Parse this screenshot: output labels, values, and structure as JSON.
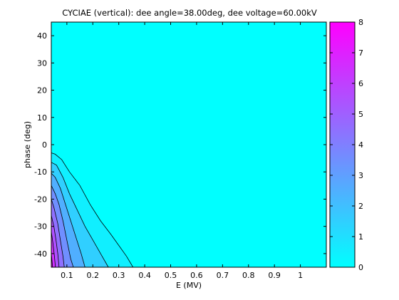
{
  "chart_data": {
    "type": "contour",
    "title": "CYCIAE (vertical): dee angle=38.00deg, dee voltage=60.00kV",
    "xlabel": "E (MV)",
    "ylabel": "phase (deg)",
    "xlim": [
      0.04,
      1.1
    ],
    "ylim": [
      -45,
      45
    ],
    "xticks": [
      "0.1",
      "0.2",
      "0.3",
      "0.4",
      "0.5",
      "0.6",
      "0.7",
      "0.8",
      "0.9",
      "1"
    ],
    "xtick_values": [
      0.1,
      0.2,
      0.3,
      0.4,
      0.5,
      0.6,
      0.7,
      0.8,
      0.9,
      1.0
    ],
    "yticks": [
      "40",
      "30",
      "20",
      "10",
      "0",
      "-10",
      "-20",
      "-30",
      "-40"
    ],
    "ytick_values": [
      40,
      30,
      20,
      10,
      0,
      -10,
      -20,
      -30,
      -40
    ],
    "colorbar": {
      "range": [
        0,
        8
      ],
      "ticks": [
        "0",
        "1",
        "2",
        "3",
        "4",
        "5",
        "6",
        "7",
        "8"
      ],
      "tick_values": [
        0,
        1,
        2,
        3,
        4,
        5,
        6,
        7,
        8
      ],
      "colormap": "cool",
      "color_low": "#00ffff",
      "color_high": "#ff00ff"
    },
    "levels": [
      {
        "level": 1,
        "points": [
          [
            0.04,
            -3.0
          ],
          [
            0.055,
            -3.5
          ],
          [
            0.08,
            -5.5
          ],
          [
            0.11,
            -10
          ],
          [
            0.15,
            -15
          ],
          [
            0.19,
            -22
          ],
          [
            0.23,
            -28
          ],
          [
            0.27,
            -33
          ],
          [
            0.3,
            -37
          ],
          [
            0.33,
            -41
          ],
          [
            0.355,
            -45
          ]
        ]
      },
      {
        "level": 2,
        "points": [
          [
            0.04,
            -6.5
          ],
          [
            0.06,
            -7.5
          ],
          [
            0.085,
            -12
          ],
          [
            0.11,
            -18
          ],
          [
            0.14,
            -24
          ],
          [
            0.17,
            -30
          ],
          [
            0.2,
            -35
          ],
          [
            0.23,
            -40
          ],
          [
            0.26,
            -45
          ]
        ]
      },
      {
        "level": 3,
        "points": [
          [
            0.04,
            -10.5
          ],
          [
            0.055,
            -12
          ],
          [
            0.075,
            -16
          ],
          [
            0.095,
            -22
          ],
          [
            0.115,
            -28
          ],
          [
            0.135,
            -34
          ],
          [
            0.155,
            -40
          ],
          [
            0.17,
            -45
          ]
        ]
      },
      {
        "level": 4,
        "points": [
          [
            0.04,
            -15
          ],
          [
            0.055,
            -18
          ],
          [
            0.07,
            -22
          ],
          [
            0.085,
            -28
          ],
          [
            0.1,
            -35
          ],
          [
            0.115,
            -42
          ],
          [
            0.125,
            -45
          ]
        ]
      },
      {
        "level": 5,
        "points": [
          [
            0.04,
            -20
          ],
          [
            0.05,
            -23
          ],
          [
            0.065,
            -29
          ],
          [
            0.075,
            -35
          ],
          [
            0.085,
            -41
          ],
          [
            0.09,
            -45
          ]
        ]
      },
      {
        "level": 6,
        "points": [
          [
            0.04,
            -26
          ],
          [
            0.05,
            -30
          ],
          [
            0.058,
            -35
          ],
          [
            0.065,
            -40
          ],
          [
            0.07,
            -45
          ]
        ]
      },
      {
        "level": 7,
        "points": [
          [
            0.04,
            -32
          ],
          [
            0.046,
            -36
          ],
          [
            0.052,
            -41
          ],
          [
            0.056,
            -45
          ]
        ]
      },
      {
        "level": 8,
        "points": [
          [
            0.04,
            -40
          ],
          [
            0.043,
            -43
          ],
          [
            0.045,
            -45
          ]
        ]
      }
    ]
  }
}
